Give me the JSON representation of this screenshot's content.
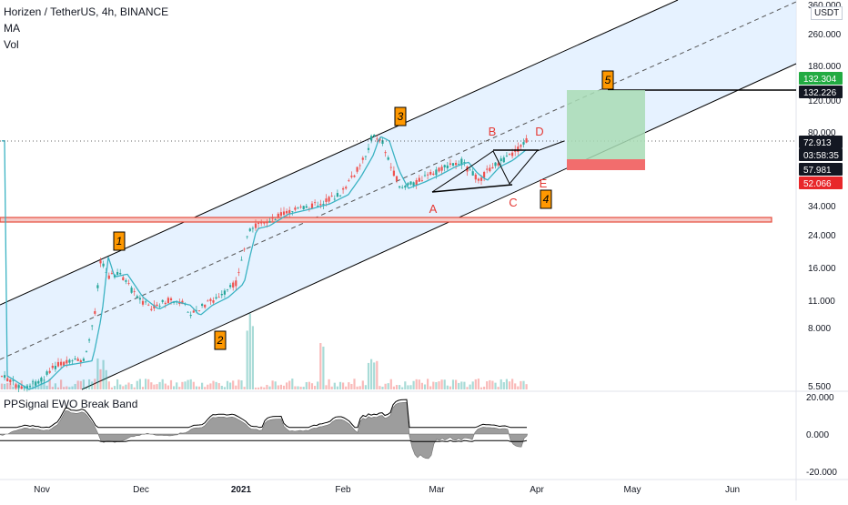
{
  "header": {
    "symbol_line": "Horizen / TetherUS, 4h, BINANCE",
    "ma_label": "MA",
    "vol_label": "Vol",
    "currency": "USDT"
  },
  "oscillator": {
    "label": "PPSignal EWO Break Band"
  },
  "colors": {
    "channel_fill": "#ddeeff",
    "channel_line": "#000000",
    "bull": "#26a69a",
    "bear": "#ef5350",
    "ma": "#3bb3c3",
    "support_band": "#e74c3c",
    "target_zone": "#a8dcb5",
    "stop_zone": "#f26d6d",
    "wave_tag": "#ff9800",
    "abcde": "#e53935",
    "ewo_fill": "#8c8c8c"
  },
  "chart_data": {
    "type": "candlestick",
    "x_axis": {
      "tick_labels": [
        "Nov",
        "Dec",
        "2021",
        "Feb",
        "Mar",
        "Apr",
        "May",
        "Jun"
      ],
      "bold_ticks": [
        "2021"
      ]
    },
    "y_axis": {
      "scale": "log",
      "tick_labels": [
        "360.000",
        "260.000",
        "180.000",
        "120.000",
        "80.000",
        "34.000",
        "24.000",
        "16.000",
        "11.000",
        "8.000",
        "5.500"
      ]
    },
    "price_labels": [
      {
        "value": "132.304",
        "style": "target"
      },
      {
        "value": "132.226",
        "style": "line"
      },
      {
        "value": "72.913",
        "style": "last"
      },
      {
        "value": "03:58:35",
        "style": "countdown"
      },
      {
        "value": "57.981",
        "style": "entry"
      },
      {
        "value": "52.066",
        "style": "stop"
      }
    ],
    "wave_labels": [
      "1",
      "2",
      "3",
      "4",
      "5"
    ],
    "pattern_labels": [
      "A",
      "B",
      "C",
      "D",
      "E"
    ],
    "price_path": [
      [
        "2020-10-23",
        5.9
      ],
      [
        "2020-10-30",
        5.4
      ],
      [
        "2020-11-05",
        5.7
      ],
      [
        "2020-11-10",
        6.3
      ],
      [
        "2020-11-15",
        6.4
      ],
      [
        "2020-11-19",
        6.5
      ],
      [
        "2020-11-22",
        9.5
      ],
      [
        "2020-11-24",
        18.5
      ],
      [
        "2020-11-26",
        14.5
      ],
      [
        "2020-11-30",
        15.0
      ],
      [
        "2020-12-05",
        11.5
      ],
      [
        "2020-12-10",
        10.0
      ],
      [
        "2020-12-15",
        11.0
      ],
      [
        "2020-12-20",
        10.5
      ],
      [
        "2020-12-23",
        9.3
      ],
      [
        "2020-12-27",
        10.5
      ],
      [
        "2021-01-01",
        11.5
      ],
      [
        "2021-01-06",
        13.5
      ],
      [
        "2021-01-08",
        19.0
      ],
      [
        "2021-01-10",
        26.0
      ],
      [
        "2021-01-14",
        27.0
      ],
      [
        "2021-01-20",
        31.0
      ],
      [
        "2021-01-27",
        33.0
      ],
      [
        "2021-02-02",
        35.0
      ],
      [
        "2021-02-08",
        39.0
      ],
      [
        "2021-02-12",
        48.0
      ],
      [
        "2021-02-16",
        62.0
      ],
      [
        "2021-02-18",
        77.0
      ],
      [
        "2021-02-21",
        73.0
      ],
      [
        "2021-02-24",
        52.0
      ],
      [
        "2021-02-27",
        42.0
      ],
      [
        "2021-03-04",
        45.0
      ],
      [
        "2021-03-09",
        49.0
      ],
      [
        "2021-03-14",
        54.0
      ],
      [
        "2021-03-18",
        57.0
      ],
      [
        "2021-03-21",
        50.0
      ],
      [
        "2021-03-24",
        46.0
      ],
      [
        "2021-03-28",
        54.0
      ],
      [
        "2021-04-01",
        58.0
      ],
      [
        "2021-04-05",
        65.0
      ],
      [
        "2021-04-08",
        72.9
      ]
    ],
    "volume_range": [
      0,
      1
    ],
    "ewo": {
      "type": "area",
      "tick_labels": [
        "20.000",
        "0.000",
        "-20.000"
      ],
      "ylim": [
        -20,
        20
      ]
    }
  }
}
